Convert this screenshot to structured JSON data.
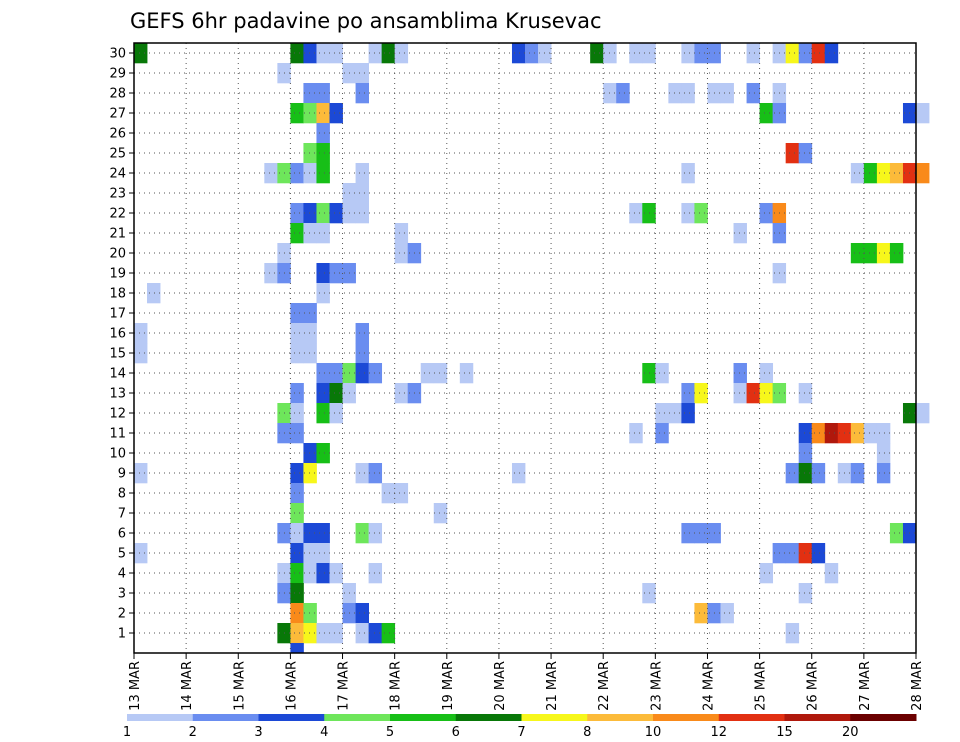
{
  "chart_data": {
    "type": "heatmap",
    "title": "GEFS 6hr padavine po ansamblima Krusevac",
    "x_tick_labels": [
      "13 MAR",
      "14 MAR",
      "15 MAR",
      "16 MAR",
      "17 MAR",
      "18 MAR",
      "19 MAR",
      "20 MAR",
      "21 MAR",
      "22 MAR",
      "23 MAR",
      "24 MAR",
      "25 MAR",
      "26 MAR",
      "27 MAR",
      "28 MAR"
    ],
    "y_tick_labels": [
      "1",
      "2",
      "3",
      "4",
      "5",
      "6",
      "7",
      "8",
      "9",
      "10",
      "11",
      "12",
      "13",
      "14",
      "15",
      "16",
      "17",
      "18",
      "19",
      "20",
      "21",
      "22",
      "23",
      "24",
      "25",
      "26",
      "27",
      "28",
      "29",
      "30"
    ],
    "x_range": [
      "13 MAR 00Z",
      "28 MAR 00Z"
    ],
    "time_step_hours": 6,
    "y_range": [
      0,
      30
    ],
    "grid": "dotted",
    "colorbar": {
      "labels": [
        "1",
        "2",
        "3",
        "4",
        "5",
        "6",
        "7",
        "8",
        "10",
        "12",
        "15",
        "20"
      ],
      "colors": [
        "#b7c9f5",
        "#6a8df0",
        "#1c49d6",
        "#6ee65b",
        "#17bf17",
        "#087808",
        "#f7f71b",
        "#fcbb3a",
        "#f98a1a",
        "#e23012",
        "#b0180c",
        "#6b0000"
      ]
    },
    "cells": [
      [
        30,
        0,
        6.5
      ],
      [
        30,
        12,
        6.5
      ],
      [
        30,
        13,
        3
      ],
      [
        30,
        14,
        1
      ],
      [
        30,
        15,
        1
      ],
      [
        30,
        18,
        1
      ],
      [
        30,
        19,
        6.5
      ],
      [
        30,
        20,
        1
      ],
      [
        30,
        29,
        3
      ],
      [
        30,
        30,
        2
      ],
      [
        30,
        31,
        1
      ],
      [
        30,
        35,
        6.5
      ],
      [
        30,
        36,
        1
      ],
      [
        30,
        38,
        1
      ],
      [
        30,
        39,
        1
      ],
      [
        30,
        42,
        1
      ],
      [
        30,
        43,
        2
      ],
      [
        30,
        44,
        2
      ],
      [
        30,
        47,
        1
      ],
      [
        30,
        49,
        1
      ],
      [
        30,
        50,
        7.5
      ],
      [
        30,
        51,
        2
      ],
      [
        30,
        52,
        13
      ],
      [
        30,
        53,
        3
      ],
      [
        29,
        11,
        1
      ],
      [
        29,
        16,
        1
      ],
      [
        29,
        17,
        1
      ],
      [
        28,
        13,
        2
      ],
      [
        28,
        14,
        2
      ],
      [
        28,
        17,
        2
      ],
      [
        28,
        36,
        1
      ],
      [
        28,
        37,
        2
      ],
      [
        28,
        41,
        1
      ],
      [
        28,
        42,
        1
      ],
      [
        28,
        44,
        1
      ],
      [
        28,
        45,
        1
      ],
      [
        28,
        47,
        2
      ],
      [
        28,
        49,
        1
      ],
      [
        27,
        12,
        5.5
      ],
      [
        27,
        13,
        4.5
      ],
      [
        27,
        14,
        9
      ],
      [
        27,
        15,
        3
      ],
      [
        27,
        48,
        5.5
      ],
      [
        27,
        49,
        2
      ],
      [
        27,
        59,
        3
      ],
      [
        27,
        60,
        1
      ],
      [
        26,
        14,
        2
      ],
      [
        25,
        13,
        4.5
      ],
      [
        25,
        14,
        5.5
      ],
      [
        25,
        50,
        13
      ],
      [
        25,
        51,
        2
      ],
      [
        24,
        10,
        1
      ],
      [
        24,
        11,
        4.5
      ],
      [
        24,
        12,
        2
      ],
      [
        24,
        13,
        1
      ],
      [
        24,
        14,
        5.5
      ],
      [
        24,
        17,
        1
      ],
      [
        24,
        42,
        1
      ],
      [
        24,
        55,
        1
      ],
      [
        24,
        56,
        5.5
      ],
      [
        24,
        57,
        7.5
      ],
      [
        24,
        58,
        9
      ],
      [
        24,
        59,
        13
      ],
      [
        24,
        60,
        11
      ],
      [
        23,
        16,
        1
      ],
      [
        23,
        17,
        1
      ],
      [
        22,
        12,
        2
      ],
      [
        22,
        13,
        3
      ],
      [
        22,
        14,
        4.5
      ],
      [
        22,
        15,
        3
      ],
      [
        22,
        16,
        1
      ],
      [
        22,
        17,
        1
      ],
      [
        22,
        38,
        1
      ],
      [
        22,
        39,
        5.5
      ],
      [
        22,
        42,
        1
      ],
      [
        22,
        43,
        4.5
      ],
      [
        22,
        48,
        2
      ],
      [
        22,
        49,
        11
      ],
      [
        21,
        12,
        5.5
      ],
      [
        21,
        13,
        1
      ],
      [
        21,
        14,
        1
      ],
      [
        21,
        20,
        1
      ],
      [
        21,
        46,
        1
      ],
      [
        21,
        49,
        2
      ],
      [
        20,
        11,
        1
      ],
      [
        20,
        20,
        1
      ],
      [
        20,
        21,
        2
      ],
      [
        20,
        55,
        5.5
      ],
      [
        20,
        56,
        5.5
      ],
      [
        20,
        57,
        7.5
      ],
      [
        20,
        58,
        5.5
      ],
      [
        19,
        10,
        1
      ],
      [
        19,
        11,
        2
      ],
      [
        19,
        14,
        3
      ],
      [
        19,
        15,
        2
      ],
      [
        19,
        16,
        2
      ],
      [
        19,
        49,
        1
      ],
      [
        18,
        1,
        1
      ],
      [
        18,
        14,
        1
      ],
      [
        17,
        12,
        2
      ],
      [
        17,
        13,
        2
      ],
      [
        16,
        0,
        1
      ],
      [
        16,
        12,
        1
      ],
      [
        16,
        13,
        1
      ],
      [
        16,
        17,
        2
      ],
      [
        15,
        0,
        1
      ],
      [
        15,
        12,
        1
      ],
      [
        15,
        13,
        1
      ],
      [
        15,
        17,
        2
      ],
      [
        14,
        14,
        2
      ],
      [
        14,
        15,
        2
      ],
      [
        14,
        16,
        4.5
      ],
      [
        14,
        17,
        3
      ],
      [
        14,
        18,
        2
      ],
      [
        14,
        22,
        1
      ],
      [
        14,
        23,
        1
      ],
      [
        14,
        25,
        1
      ],
      [
        14,
        39,
        5.5
      ],
      [
        14,
        40,
        1
      ],
      [
        14,
        46,
        2
      ],
      [
        14,
        48,
        1
      ],
      [
        13,
        12,
        2
      ],
      [
        13,
        14,
        3
      ],
      [
        13,
        15,
        6.5
      ],
      [
        13,
        16,
        1
      ],
      [
        13,
        20,
        1
      ],
      [
        13,
        21,
        2
      ],
      [
        13,
        42,
        2
      ],
      [
        13,
        43,
        7.5
      ],
      [
        13,
        46,
        1
      ],
      [
        13,
        47,
        13
      ],
      [
        13,
        48,
        7.5
      ],
      [
        13,
        49,
        4.5
      ],
      [
        13,
        51,
        1
      ],
      [
        12,
        11,
        4.5
      ],
      [
        12,
        12,
        1
      ],
      [
        12,
        14,
        5.5
      ],
      [
        12,
        15,
        1
      ],
      [
        12,
        40,
        1
      ],
      [
        12,
        41,
        1
      ],
      [
        12,
        42,
        3
      ],
      [
        12,
        59,
        6.5
      ],
      [
        12,
        60,
        1
      ],
      [
        11,
        11,
        2
      ],
      [
        11,
        12,
        2
      ],
      [
        11,
        38,
        1
      ],
      [
        11,
        40,
        2
      ],
      [
        11,
        51,
        3
      ],
      [
        11,
        52,
        11
      ],
      [
        11,
        53,
        17
      ],
      [
        11,
        54,
        13
      ],
      [
        11,
        55,
        9
      ],
      [
        11,
        56,
        1
      ],
      [
        11,
        57,
        1
      ],
      [
        10,
        13,
        3
      ],
      [
        10,
        14,
        5.5
      ],
      [
        10,
        51,
        2
      ],
      [
        10,
        57,
        1
      ],
      [
        9,
        0,
        1
      ],
      [
        9,
        12,
        3
      ],
      [
        9,
        13,
        7.5
      ],
      [
        9,
        17,
        1
      ],
      [
        9,
        18,
        2
      ],
      [
        9,
        29,
        1
      ],
      [
        9,
        50,
        2
      ],
      [
        9,
        51,
        6.5
      ],
      [
        9,
        52,
        2
      ],
      [
        9,
        54,
        1
      ],
      [
        9,
        55,
        2
      ],
      [
        9,
        57,
        2
      ],
      [
        8,
        12,
        2
      ],
      [
        8,
        19,
        1
      ],
      [
        8,
        20,
        1
      ],
      [
        7,
        12,
        4.5
      ],
      [
        7,
        23,
        1
      ],
      [
        6,
        11,
        2
      ],
      [
        6,
        12,
        1
      ],
      [
        6,
        13,
        3
      ],
      [
        6,
        14,
        3
      ],
      [
        6,
        17,
        4.5
      ],
      [
        6,
        18,
        1
      ],
      [
        6,
        42,
        2
      ],
      [
        6,
        43,
        2
      ],
      [
        6,
        44,
        2
      ],
      [
        6,
        58,
        4.5
      ],
      [
        6,
        59,
        3
      ],
      [
        5,
        0,
        1
      ],
      [
        5,
        12,
        3
      ],
      [
        5,
        13,
        1
      ],
      [
        5,
        14,
        1
      ],
      [
        5,
        49,
        2
      ],
      [
        5,
        50,
        2
      ],
      [
        5,
        51,
        13
      ],
      [
        5,
        52,
        3
      ],
      [
        4,
        11,
        1
      ],
      [
        4,
        12,
        5.5
      ],
      [
        4,
        13,
        1
      ],
      [
        4,
        14,
        3
      ],
      [
        4,
        15,
        1
      ],
      [
        4,
        18,
        1
      ],
      [
        4,
        48,
        1
      ],
      [
        4,
        53,
        1
      ],
      [
        3,
        11,
        2
      ],
      [
        3,
        12,
        6.5
      ],
      [
        3,
        16,
        1
      ],
      [
        3,
        39,
        1
      ],
      [
        3,
        51,
        1
      ],
      [
        2,
        12,
        11
      ],
      [
        2,
        13,
        4.5
      ],
      [
        2,
        16,
        2
      ],
      [
        2,
        17,
        3
      ],
      [
        2,
        43,
        9
      ],
      [
        2,
        44,
        2
      ],
      [
        2,
        45,
        1
      ],
      [
        1,
        11,
        6.5
      ],
      [
        1,
        12,
        9
      ],
      [
        1,
        13,
        7.5
      ],
      [
        1,
        14,
        1
      ],
      [
        1,
        15,
        1
      ],
      [
        1,
        17,
        1
      ],
      [
        1,
        18,
        3
      ],
      [
        1,
        19,
        5.5
      ],
      [
        1,
        50,
        1
      ],
      [
        0,
        12,
        3
      ]
    ]
  }
}
